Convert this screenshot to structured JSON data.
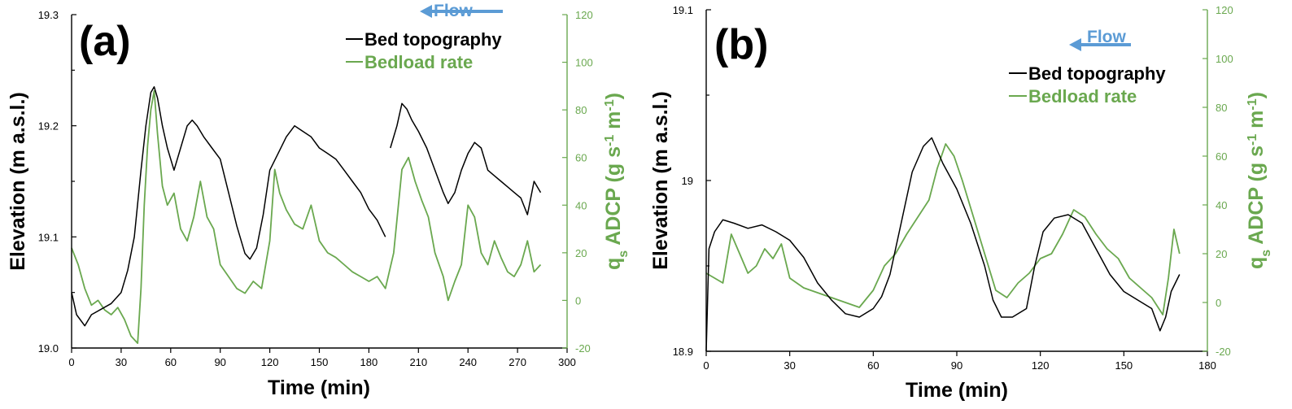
{
  "colors": {
    "bed": "#000000",
    "bedload": "#6aa84f",
    "flow": "#5b9bd5"
  },
  "charts": [
    {
      "panel_label": "(a)",
      "xlabel": "Time (min)",
      "ylabel_left": "Elevation (m a.s.l.)",
      "ylabel_right_main": "q",
      "ylabel_right_sub": "s",
      "ylabel_right_rest": " ADCP (g s",
      "ylabel_right_sup1": "-1",
      "ylabel_right_m": " m",
      "ylabel_right_sup2": "-1",
      "ylabel_right_end": ")",
      "xticks": [
        "0",
        "30",
        "60",
        "90",
        "120",
        "150",
        "180",
        "210",
        "240",
        "270",
        "300"
      ],
      "yticks_left": [
        "19.0",
        "19.1",
        "19.2",
        "19.3"
      ],
      "yticks_right": [
        "-20",
        "0",
        "20",
        "40",
        "60",
        "80",
        "100",
        "120"
      ],
      "legend": [
        "Bed topography",
        "Bedload rate"
      ],
      "flow_label": "Flow"
    },
    {
      "panel_label": "(b)",
      "xlabel": "Time (min)",
      "ylabel_left": "Elevation (m a.s.l.)",
      "ylabel_right_main": "q",
      "ylabel_right_sub": "s",
      "ylabel_right_rest": " ADCP (g s",
      "ylabel_right_sup1": "-1",
      "ylabel_right_m": " m",
      "ylabel_right_sup2": "-1",
      "ylabel_right_end": ")",
      "xticks": [
        "0",
        "30",
        "60",
        "90",
        "120",
        "150",
        "180"
      ],
      "yticks_left": [
        "18.9",
        "19",
        "19.1"
      ],
      "yticks_right": [
        "-20",
        "0",
        "20",
        "40",
        "60",
        "80",
        "100",
        "120"
      ],
      "legend": [
        "Bed topography",
        "Bedload rate"
      ],
      "flow_label": "Flow"
    }
  ],
  "chart_data": [
    {
      "type": "line",
      "title": "(a)",
      "xlabel": "Time (min)",
      "ylabel": "Elevation (m a.s.l.)",
      "ylabel_right": "qs ADCP (g s-1 m-1)",
      "xlim": [
        0,
        300
      ],
      "ylim": [
        19.0,
        19.3
      ],
      "ylim_right": [
        -20,
        120
      ],
      "legend_position": "top-right",
      "series": [
        {
          "name": "Bed topography",
          "axis": "left",
          "segments": [
            {
              "x": [
                0,
                3,
                8,
                12,
                18,
                24,
                30,
                34,
                38,
                42,
                45,
                48,
                50,
                52,
                55,
                58,
                62,
                66,
                70,
                73,
                76,
                80,
                85,
                90,
                95,
                100,
                105,
                108,
                112,
                116,
                120,
                125,
                130,
                135,
                140,
                145,
                150,
                155,
                160,
                165,
                170,
                175,
                180,
                185,
                190
              ],
              "y": [
                19.05,
                19.03,
                19.02,
                19.03,
                19.035,
                19.04,
                19.05,
                19.07,
                19.1,
                19.16,
                19.2,
                19.23,
                19.235,
                19.225,
                19.2,
                19.18,
                19.16,
                19.18,
                19.2,
                19.205,
                19.2,
                19.19,
                19.18,
                19.17,
                19.14,
                19.11,
                19.085,
                19.08,
                19.09,
                19.12,
                19.16,
                19.175,
                19.19,
                19.2,
                19.195,
                19.19,
                19.18,
                19.175,
                19.17,
                19.16,
                19.15,
                19.14,
                19.125,
                19.115,
                19.1
              ]
            },
            {
              "x": [
                193,
                197,
                200,
                203,
                206,
                210,
                215,
                220,
                225,
                228,
                232,
                236,
                240,
                244,
                248,
                252,
                256,
                260,
                264,
                268,
                272,
                276,
                280,
                284
              ],
              "y": [
                19.18,
                19.2,
                19.22,
                19.215,
                19.205,
                19.195,
                19.18,
                19.16,
                19.14,
                19.13,
                19.14,
                19.16,
                19.175,
                19.185,
                19.18,
                19.16,
                19.155,
                19.15,
                19.145,
                19.14,
                19.135,
                19.12,
                19.15,
                19.14
              ]
            }
          ]
        },
        {
          "name": "Bedload rate",
          "axis": "right",
          "segments": [
            {
              "x": [
                0,
                4,
                8,
                12,
                16,
                20,
                24,
                28,
                32,
                36,
                40,
                42,
                44,
                46,
                48,
                50,
                52,
                55,
                58,
                62,
                66,
                70,
                74,
                78,
                82,
                86,
                90,
                95,
                100,
                105,
                110,
                115,
                120,
                123,
                126,
                130,
                135,
                140,
                145,
                150,
                155,
                160,
                165,
                170,
                175,
                180,
                185,
                190,
                195,
                200,
                204,
                208,
                212,
                216,
                220,
                225,
                228,
                232,
                236,
                240,
                244,
                248,
                252,
                256,
                260,
                264,
                268,
                272,
                276,
                280,
                284
              ],
              "y": [
                22,
                15,
                5,
                -2,
                0,
                -4,
                -6,
                -3,
                -8,
                -15,
                -18,
                5,
                40,
                65,
                80,
                88,
                70,
                48,
                40,
                45,
                30,
                25,
                35,
                50,
                35,
                30,
                15,
                10,
                5,
                3,
                8,
                5,
                25,
                55,
                45,
                38,
                32,
                30,
                40,
                25,
                20,
                18,
                15,
                12,
                10,
                8,
                10,
                5,
                20,
                55,
                60,
                50,
                42,
                35,
                20,
                10,
                0,
                8,
                15,
                40,
                35,
                20,
                15,
                25,
                18,
                12,
                10,
                15,
                25,
                12,
                15
              ]
            }
          ]
        }
      ]
    },
    {
      "type": "line",
      "title": "(b)",
      "xlabel": "Time (min)",
      "ylabel": "Elevation (m a.s.l.)",
      "ylabel_right": "qs ADCP (g s-1 m-1)",
      "xlim": [
        0,
        180
      ],
      "ylim": [
        18.9,
        19.1
      ],
      "ylim_right": [
        -20,
        120
      ],
      "legend_position": "top-right",
      "series": [
        {
          "name": "Bed topography",
          "axis": "left",
          "segments": [
            {
              "x": [
                0,
                1,
                3,
                6,
                10,
                15,
                20,
                25,
                30,
                35,
                40,
                45,
                50,
                55,
                60,
                63,
                66,
                70,
                74,
                78,
                81,
                85,
                90,
                95,
                100,
                103,
                106,
                110,
                115,
                118,
                121,
                125,
                130,
                135,
                140,
                145,
                150,
                155,
                160,
                163,
                165,
                167,
                170
              ],
              "y": [
                18.9,
                18.96,
                18.97,
                18.977,
                18.975,
                18.972,
                18.974,
                18.97,
                18.965,
                18.955,
                18.94,
                18.93,
                18.922,
                18.92,
                18.925,
                18.932,
                18.945,
                18.975,
                19.005,
                19.02,
                19.025,
                19.01,
                18.995,
                18.975,
                18.95,
                18.93,
                18.92,
                18.92,
                18.925,
                18.95,
                18.97,
                18.978,
                18.98,
                18.975,
                18.96,
                18.945,
                18.935,
                18.93,
                18.925,
                18.912,
                18.92,
                18.935,
                18.945
              ]
            }
          ]
        },
        {
          "name": "Bedload rate",
          "axis": "right",
          "segments": [
            {
              "x": [
                0,
                3,
                6,
                9,
                12,
                15,
                18,
                21,
                24,
                27,
                30,
                35,
                40,
                45,
                50,
                55,
                60,
                64,
                68,
                72,
                76,
                80,
                83,
                86,
                89,
                92,
                96,
                100,
                104,
                108,
                112,
                116,
                120,
                124,
                128,
                132,
                136,
                140,
                144,
                148,
                152,
                156,
                160,
                164,
                166,
                168,
                170
              ],
              "y": [
                12,
                10,
                8,
                28,
                20,
                12,
                15,
                22,
                18,
                24,
                10,
                6,
                4,
                2,
                0,
                -2,
                5,
                15,
                20,
                28,
                35,
                42,
                55,
                65,
                60,
                50,
                35,
                20,
                5,
                2,
                8,
                12,
                18,
                20,
                28,
                38,
                35,
                28,
                22,
                18,
                10,
                6,
                2,
                -5,
                10,
                30,
                20
              ]
            }
          ]
        }
      ]
    }
  ]
}
